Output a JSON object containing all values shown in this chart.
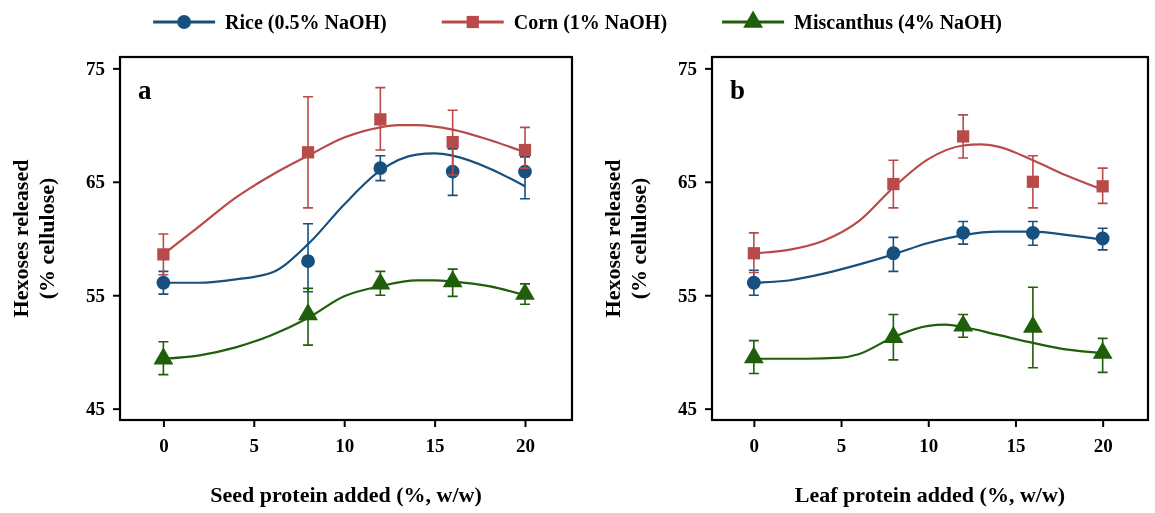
{
  "chart_data": [
    {
      "type": "scatter",
      "xlabel": "Seed protein added (%, w/w)",
      "ylabel": "Hexoses released\n(% cellulose)",
      "xlim": [
        -2.4,
        22.6
      ],
      "ylim": [
        44,
        76
      ],
      "xticks": [
        0,
        5,
        10,
        15,
        20
      ],
      "yticks": [
        45,
        55,
        65,
        75
      ],
      "legend": "top",
      "annotations": [
        "a"
      ],
      "x": [
        0,
        8,
        12,
        16,
        20
      ],
      "series": [
        {
          "type": "line",
          "color": "#b84a4a",
          "x": [
            0,
            2,
            4,
            6,
            8,
            10,
            12,
            13,
            14,
            16,
            18,
            20
          ],
          "values": [
            58.6,
            61.1,
            63.6,
            65.6,
            67.3,
            68.9,
            69.8,
            70.0,
            70.0,
            69.6,
            68.7,
            67.6
          ]
        },
        {
          "type": "line",
          "color": "#17507f",
          "x": [
            0,
            2,
            4,
            6,
            8,
            10,
            12,
            14,
            15,
            16,
            18,
            20
          ],
          "values": [
            56.1,
            56.1,
            56.4,
            57.0,
            59.5,
            63.0,
            66.0,
            67.4,
            67.5,
            67.3,
            66.2,
            64.6
          ]
        },
        {
          "type": "line",
          "color": "#1f5e0a",
          "x": [
            0,
            2,
            4,
            6,
            8,
            10,
            12,
            14,
            15,
            16,
            18,
            20
          ],
          "values": [
            49.4,
            49.7,
            50.4,
            51.5,
            53.0,
            54.9,
            55.8,
            56.3,
            56.3,
            56.2,
            55.8,
            55.0
          ]
        },
        {
          "name": "Rice (0.5% NaOH)",
          "color": "#17507f",
          "marker": "circle",
          "values": [
            56.1,
            58.0,
            66.2,
            65.9,
            65.9
          ],
          "errors": [
            [
              55.1,
              57.1
            ],
            [
              55.3,
              61.3
            ],
            [
              65.1,
              67.3
            ],
            [
              63.8,
              67.9
            ],
            [
              63.5,
              67.2
            ]
          ]
        },
        {
          "name": "Corn (1% NaOH)",
          "color": "#b84a4a",
          "marker": "square",
          "values": [
            58.6,
            67.6,
            70.5,
            68.5,
            67.8
          ],
          "errors": [
            [
              56.8,
              60.4
            ],
            [
              62.7,
              72.5
            ],
            [
              67.8,
              73.3
            ],
            [
              65.6,
              71.3
            ],
            [
              66.2,
              69.8
            ]
          ]
        },
        {
          "name": "Miscanthus (4% NaOH)",
          "color": "#1f5e0a",
          "marker": "triangle",
          "values": [
            49.4,
            53.3,
            56.0,
            56.2,
            55.1
          ],
          "errors": [
            [
              48.0,
              50.9
            ],
            [
              50.6,
              55.6
            ],
            [
              55.0,
              57.1
            ],
            [
              54.9,
              57.3
            ],
            [
              54.2,
              56.0
            ]
          ]
        }
      ]
    },
    {
      "type": "scatter",
      "xlabel": "Leaf protein added (%, w/w)",
      "ylabel": "Hexoses released\n(% cellulose)",
      "xlim": [
        -2.4,
        22.6
      ],
      "ylim": [
        44,
        76
      ],
      "xticks": [
        0,
        5,
        10,
        15,
        20
      ],
      "yticks": [
        45,
        55,
        65,
        75
      ],
      "annotations": [
        "b"
      ],
      "x": [
        0,
        8,
        12,
        16,
        20
      ],
      "series": [
        {
          "type": "line",
          "color": "#b84a4a",
          "x": [
            0,
            2,
            4,
            6,
            8,
            10,
            12,
            13,
            14,
            16,
            18,
            20
          ],
          "values": [
            58.7,
            59.0,
            59.8,
            61.5,
            64.5,
            67.0,
            68.2,
            68.3,
            68.1,
            66.9,
            65.5,
            64.3
          ]
        },
        {
          "type": "line",
          "color": "#17507f",
          "x": [
            0,
            2,
            4,
            6,
            8,
            10,
            12,
            14,
            16,
            18,
            20
          ],
          "values": [
            56.1,
            56.3,
            56.9,
            57.7,
            58.6,
            59.6,
            60.3,
            60.6,
            60.6,
            60.3,
            59.9
          ]
        },
        {
          "type": "line",
          "color": "#1f5e0a",
          "x": [
            0,
            3,
            5,
            6,
            8,
            10,
            11,
            12,
            14,
            16,
            18,
            20
          ],
          "values": [
            49.4,
            49.4,
            49.5,
            49.8,
            51.3,
            52.3,
            52.4,
            52.2,
            51.5,
            50.8,
            50.2,
            49.9
          ]
        },
        {
          "color": "#17507f",
          "marker": "circle",
          "values": [
            56.1,
            58.7,
            60.5,
            60.5,
            60.0
          ],
          "errors": [
            [
              55.0,
              57.2
            ],
            [
              57.1,
              60.1
            ],
            [
              59.5,
              61.5
            ],
            [
              59.4,
              61.5
            ],
            [
              59.0,
              60.9
            ]
          ]
        },
        {
          "color": "#b84a4a",
          "marker": "square",
          "values": [
            58.7,
            64.8,
            69.0,
            65.0,
            64.6
          ],
          "errors": [
            [
              57.0,
              60.5
            ],
            [
              62.7,
              66.9
            ],
            [
              67.1,
              70.9
            ],
            [
              62.7,
              67.3
            ],
            [
              63.1,
              66.2
            ]
          ]
        },
        {
          "color": "#1f5e0a",
          "marker": "triangle",
          "values": [
            49.5,
            51.3,
            52.3,
            52.2,
            49.9
          ],
          "errors": [
            [
              48.1,
              51.0
            ],
            [
              49.3,
              53.3
            ],
            [
              51.3,
              53.3
            ],
            [
              48.6,
              55.7
            ],
            [
              48.2,
              51.2
            ]
          ]
        }
      ]
    }
  ]
}
